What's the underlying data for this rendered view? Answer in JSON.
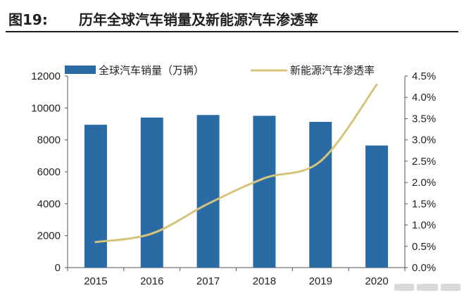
{
  "figure": {
    "number": "图19:",
    "title": "历年全球汽车销量及新能源汽车渗透率"
  },
  "chart_data": {
    "type": "bar",
    "categories": [
      "2015",
      "2016",
      "2017",
      "2018",
      "2019",
      "2020"
    ],
    "series": [
      {
        "name": "全球汽车销量（万辆）",
        "type": "bar",
        "axis": "left",
        "values": [
          8950,
          9400,
          9560,
          9510,
          9130,
          7650
        ],
        "color": "#2a6aa5"
      },
      {
        "name": "新能源汽车渗透率",
        "type": "line",
        "axis": "right",
        "values": [
          0.6,
          0.8,
          1.5,
          2.1,
          2.5,
          4.3
        ],
        "color": "#d6c47a",
        "smooth": true
      }
    ],
    "y_left": {
      "min": 0,
      "max": 12000,
      "step": 2000,
      "tick_labels": [
        "0",
        "2000",
        "4000",
        "6000",
        "8000",
        "10000",
        "12000"
      ]
    },
    "y_right": {
      "min": 0,
      "max": 4.5,
      "step": 0.5,
      "tick_labels": [
        "0.0%",
        "0.5%",
        "1.0%",
        "1.5%",
        "2.0%",
        "2.5%",
        "3.0%",
        "3.5%",
        "4.0%",
        "4.5%"
      ]
    },
    "grid": false,
    "legend_position": "top"
  }
}
